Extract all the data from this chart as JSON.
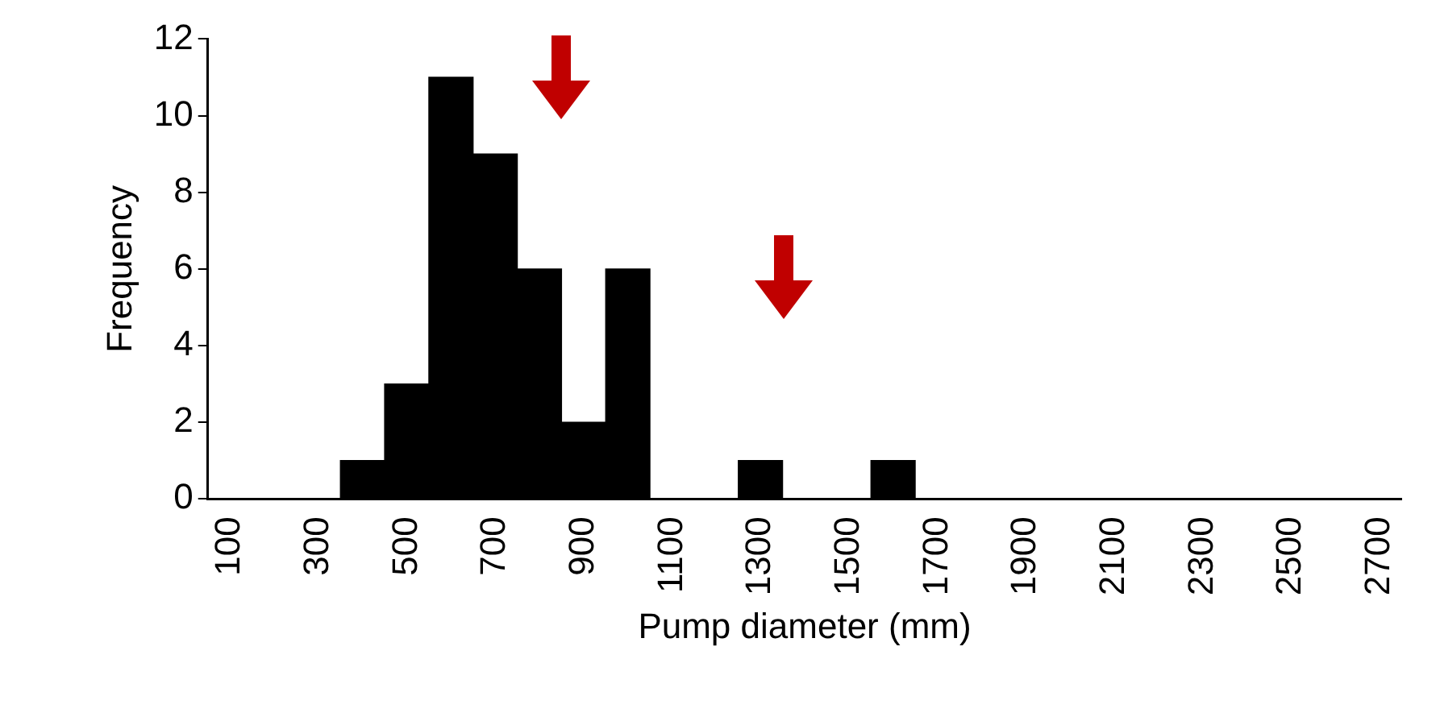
{
  "chart_data": {
    "type": "bar",
    "xlabel": "Pump diameter (mm)",
    "ylabel": "Frequency",
    "categories": [
      "100",
      null,
      "300",
      null,
      "500",
      null,
      "700",
      null,
      "900",
      null,
      "1100",
      null,
      "1300",
      null,
      "1500",
      null,
      "1700",
      null,
      "1900",
      null,
      "2100",
      null,
      "2300",
      null,
      "2500",
      null,
      "2700"
    ],
    "values": [
      0,
      0,
      0,
      1,
      3,
      11,
      9,
      6,
      2,
      6,
      0,
      0,
      1,
      0,
      0,
      1,
      0,
      0,
      0,
      0,
      0,
      0,
      0,
      0,
      0,
      0,
      0
    ],
    "color": "#000000",
    "ylim": [
      0,
      12
    ],
    "yticks": [
      0,
      2,
      4,
      6,
      8,
      10,
      12
    ],
    "grid": false
  }
}
